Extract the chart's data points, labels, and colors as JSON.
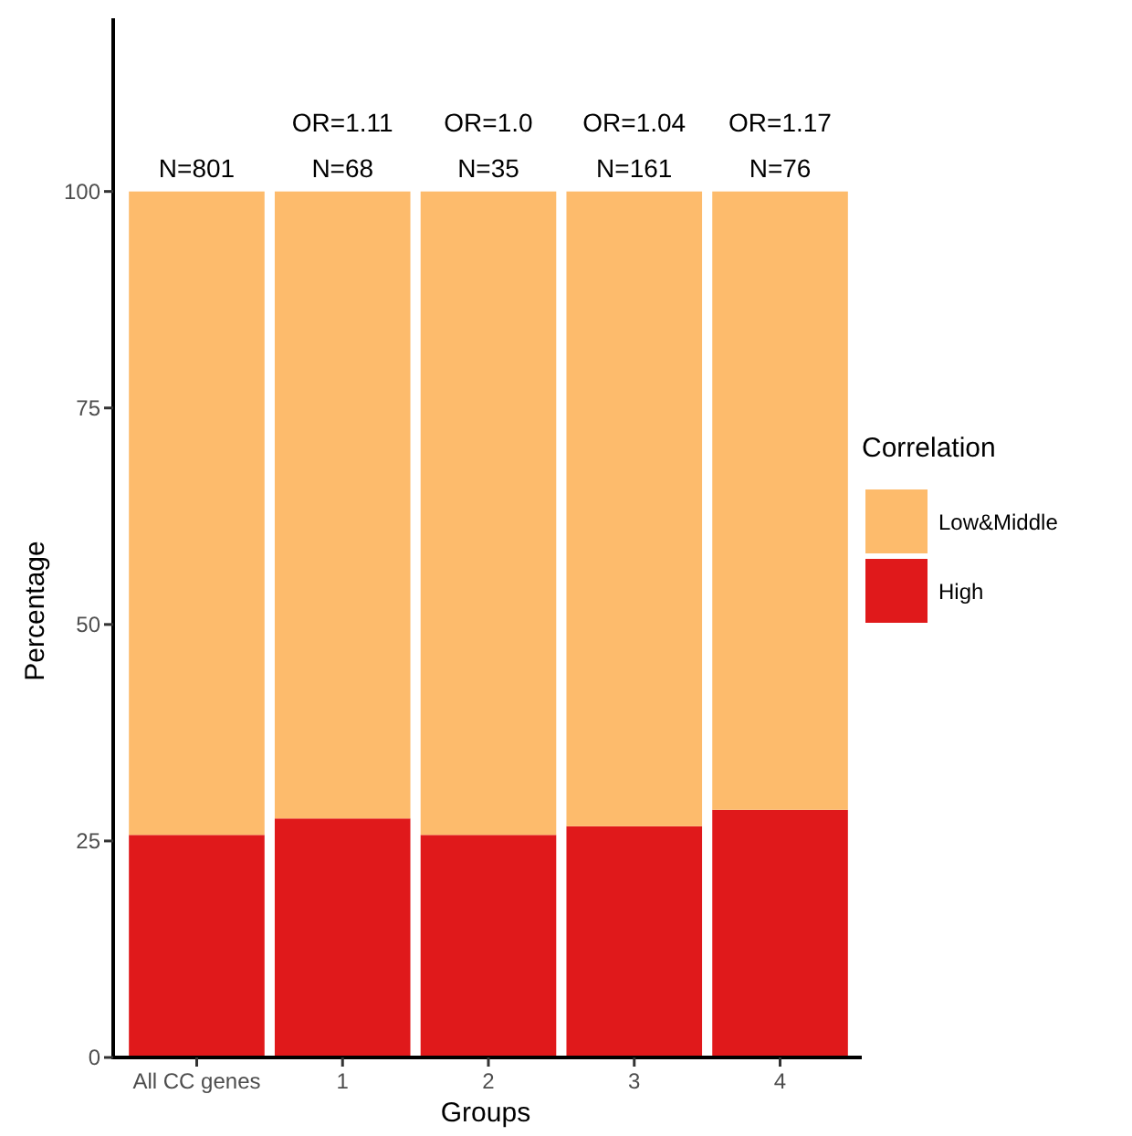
{
  "chart_data": {
    "type": "bar",
    "stacked": true,
    "xlabel": "Groups",
    "ylabel": "Percentage",
    "legend_title": "Correlation",
    "legend": "right",
    "grid": false,
    "categories": [
      "All CC genes",
      "1",
      "2",
      "3",
      "4"
    ],
    "series": [
      {
        "name": "High",
        "color": "#e0191b",
        "values": [
          25.7,
          27.6,
          25.7,
          26.7,
          28.6
        ]
      },
      {
        "name": "Low&Middle",
        "color": "#fdbb6c",
        "values": [
          74.3,
          72.4,
          74.3,
          73.3,
          71.4
        ]
      }
    ],
    "ylim": [
      0,
      120
    ],
    "yticks": [
      0,
      25,
      50,
      75,
      100
    ],
    "annotations": [
      {
        "text": "N=801",
        "x": "All CC genes",
        "y": 100
      },
      {
        "text": "N=68",
        "x": "1",
        "y": 100
      },
      {
        "text": "OR=1.11",
        "x": "1",
        "y": 100
      },
      {
        "text": "N=35",
        "x": "2",
        "y": 100
      },
      {
        "text": "OR=1.0",
        "x": "2",
        "y": 100
      },
      {
        "text": "N=161",
        "x": "3",
        "y": 100
      },
      {
        "text": "OR=1.04",
        "x": "3",
        "y": 100
      },
      {
        "text": "N=76",
        "x": "4",
        "y": 100
      },
      {
        "text": "OR=1.17",
        "x": "4",
        "y": 100
      }
    ]
  }
}
